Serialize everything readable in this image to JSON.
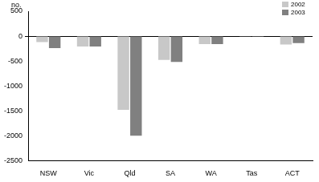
{
  "chart_data": {
    "type": "bar",
    "ylabel": "no.",
    "categories": [
      "NSW",
      "Vic",
      "Qld",
      "SA",
      "WA",
      "Tas",
      "ACT"
    ],
    "series": [
      {
        "name": "2002",
        "color": "#c8c8c8",
        "values": [
          -120,
          -210,
          -1480,
          -480,
          -160,
          -10,
          -170
        ]
      },
      {
        "name": "2003",
        "color": "#808080",
        "values": [
          -240,
          -210,
          -2000,
          -520,
          -160,
          -15,
          -140
        ]
      }
    ],
    "ylim": [
      -2500,
      500
    ],
    "yticks": [
      -2500,
      -2000,
      -1500,
      -1000,
      -500,
      0,
      500
    ],
    "grid": false,
    "legend": "upper right"
  }
}
